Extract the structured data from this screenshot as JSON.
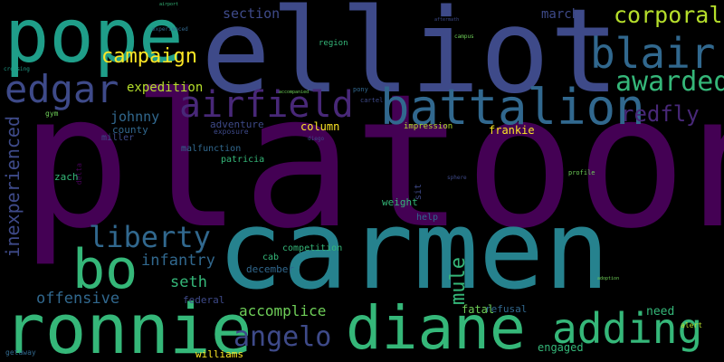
{
  "palette": {
    "background": "#000000",
    "dark_purple": "#440154",
    "indigo": "#482878",
    "blue_violet": "#3e4a89",
    "steel_blue": "#31688e",
    "teal_blue": "#26828e",
    "teal": "#1f9e89",
    "green": "#35b779",
    "light_green": "#6ece58",
    "lime": "#b5de2b",
    "yellow": "#fde725"
  },
  "words": {
    "platoon": "platoon",
    "carmen": "carmen",
    "elliot": "elliot",
    "pope": "pope",
    "ronnie": "ronnie",
    "diane": "diane",
    "battalion": "battalion",
    "bo": "bo",
    "airfield": "airfield",
    "blair": "blair",
    "edgar": "edgar",
    "adding": "adding",
    "corporal": "corporal",
    "awarded": "awarded",
    "liberty": "liberty",
    "angelo": "angelo",
    "campaign": "campaign",
    "inexperienced": "inexperienced",
    "redfly": "redfly",
    "mule": "mule",
    "offensive": "offensive",
    "infantry": "infantry",
    "seth": "seth",
    "accomplice": "accomplice",
    "expedition": "expedition",
    "johnny": "johnny",
    "section": "section",
    "march": "march",
    "county": "county",
    "column": "column",
    "frankie": "frankie",
    "miller": "miller",
    "adventure": "adventure",
    "impression": "impression",
    "patricia": "patricia",
    "malfunction": "malfunction",
    "zach": "zach",
    "weight": "weight",
    "help": "help",
    "federal": "federal",
    "williams": "williams",
    "engaged": "engaged",
    "refusal": "refusal",
    "fatal": "fatal",
    "need": "need",
    "alert": "alert",
    "december": "december",
    "competition": "competition",
    "cab": "cab",
    "region": "region",
    "delta": "delta",
    "gym": "gym",
    "getaway": "getaway",
    "sit": "sit",
    "profile": "profile",
    "campus": "campus",
    "crossing": "crossing",
    "experienced": "experienced",
    "diego": "diego",
    "pony": "pony",
    "cartel": "cartel",
    "sphere": "sphere",
    "exposure": "exposure",
    "aftermath": "aftermath",
    "airport": "airport",
    "accompanied": "accompanied",
    "adoption": "adoption"
  }
}
